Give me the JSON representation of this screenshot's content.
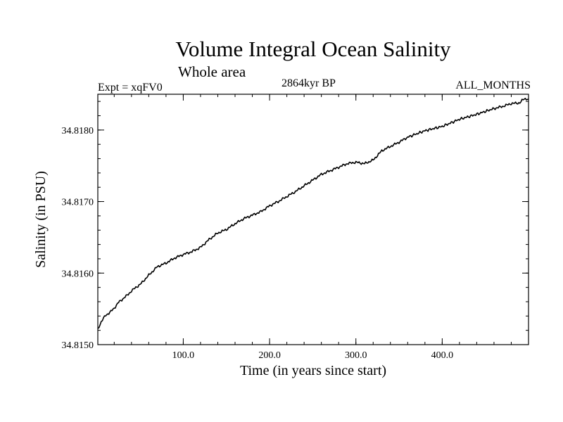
{
  "chart_data": {
    "type": "line",
    "title": "Volume Integral Ocean Salinity",
    "subtitle": "Whole area",
    "left_label": "Expt = xqFV0",
    "center_label": "2864kyr BP",
    "right_label": "ALL_MONTHS",
    "xlabel": "Time (in years since start)",
    "ylabel": "Salinity (in PSU)",
    "xlim": [
      1,
      500
    ],
    "ylim": [
      34.815,
      34.8185
    ],
    "xticks": [
      100,
      200,
      300,
      400
    ],
    "xtick_labels": [
      "100.0",
      "200.0",
      "300.0",
      "400.0"
    ],
    "yticks": [
      34.815,
      34.816,
      34.817,
      34.818
    ],
    "ytick_labels": [
      "34.8150",
      "34.8160",
      "34.8170",
      "34.8180"
    ],
    "grid": false,
    "series": [
      {
        "name": "Volume integral salinity",
        "color": "#000000",
        "x": [
          1,
          5,
          10,
          15,
          20,
          25,
          30,
          35,
          40,
          45,
          50,
          60,
          70,
          80,
          90,
          100,
          110,
          120,
          130,
          140,
          150,
          160,
          170,
          180,
          190,
          200,
          210,
          220,
          230,
          240,
          250,
          260,
          270,
          280,
          290,
          300,
          310,
          320,
          330,
          340,
          350,
          360,
          380,
          400,
          420,
          440,
          460,
          470,
          480,
          490,
          495,
          500
        ],
        "values": [
          34.81522,
          34.81532,
          34.81541,
          34.81545,
          34.81551,
          34.81559,
          34.81564,
          34.81569,
          34.81575,
          34.8158,
          34.81584,
          34.81597,
          34.81609,
          34.81614,
          34.81621,
          34.81626,
          34.8163,
          34.81636,
          34.81647,
          34.81656,
          34.81661,
          34.81669,
          34.81676,
          34.81681,
          34.81686,
          34.81694,
          34.817,
          34.81707,
          34.81714,
          34.81722,
          34.8173,
          34.81738,
          34.81743,
          34.81748,
          34.81753,
          34.81755,
          34.81753,
          34.81758,
          34.81771,
          34.81777,
          34.81783,
          34.8179,
          34.81799,
          34.81805,
          34.81815,
          34.81822,
          34.8183,
          34.81833,
          34.81837,
          34.81838,
          34.81844,
          34.81843
        ]
      }
    ]
  }
}
